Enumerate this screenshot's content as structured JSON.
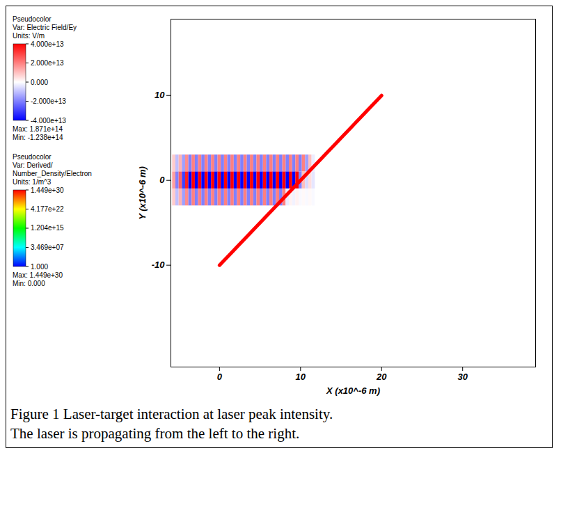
{
  "chart_data": {
    "type": "field_map",
    "xlabel": "X (x10^-6 m)",
    "ylabel": "Y (x10^-6 m)",
    "xlim": [
      -6,
      39
    ],
    "ylim": [
      -22,
      19
    ],
    "xticks": [
      0,
      10,
      20,
      30
    ],
    "yticks": [
      -10,
      0,
      10
    ],
    "ey_field": {
      "x": [
        -5.6,
        -5.2,
        -4.8,
        -4.4,
        -4.0,
        -3.6,
        -3.2,
        -2.8,
        -2.4,
        -2.0,
        -1.6,
        -1.2,
        -0.8,
        -0.4,
        0,
        0.4,
        0.8,
        1.2,
        1.6,
        2.0,
        2.4,
        2.8,
        3.2,
        3.6,
        4.0,
        4.4,
        4.8,
        5.2,
        5.6,
        6.0,
        6.4,
        6.8,
        7.2,
        7.6,
        8.0,
        8.4,
        8.8,
        9.2,
        9.6,
        10.0,
        10.4,
        10.8,
        11.2,
        11.6
      ],
      "y": [
        2,
        0,
        -2
      ],
      "cell_width": 0.4,
      "cell_height": 2,
      "values": [
        [
          8000000000000.0,
          -10000000000000.0,
          12000000000000.0,
          -15000000000000.0,
          18000000000000.0,
          -20000000000000.0,
          20000000000000.0,
          -20000000000000.0,
          20000000000000.0,
          -20000000000000.0,
          20000000000000.0,
          -20000000000000.0,
          20000000000000.0,
          -20000000000000.0,
          20000000000000.0,
          -20000000000000.0,
          20000000000000.0,
          -20000000000000.0,
          20000000000000.0,
          -20000000000000.0,
          20000000000000.0,
          -20000000000000.0,
          20000000000000.0,
          -20000000000000.0,
          20000000000000.0,
          -20000000000000.0,
          20000000000000.0,
          -20000000000000.0,
          20000000000000.0,
          -20000000000000.0,
          20000000000000.0,
          -20000000000000.0,
          20000000000000.0,
          -20000000000000.0,
          20000000000000.0,
          -20000000000000.0,
          20000000000000.0,
          -20000000000000.0,
          20000000000000.0,
          -20000000000000.0,
          20000000000000.0,
          -15000000000000.0,
          10000000000000.0,
          -3000000000000.0
        ],
        [
          15000000000000.0,
          -20000000000000.0,
          25000000000000.0,
          -30000000000000.0,
          35000000000000.0,
          -40000000000000.0,
          40000000000000.0,
          -40000000000000.0,
          40000000000000.0,
          -40000000000000.0,
          40000000000000.0,
          -40000000000000.0,
          40000000000000.0,
          -40000000000000.0,
          40000000000000.0,
          -40000000000000.0,
          40000000000000.0,
          -40000000000000.0,
          40000000000000.0,
          -40000000000000.0,
          40000000000000.0,
          -40000000000000.0,
          40000000000000.0,
          -40000000000000.0,
          40000000000000.0,
          -40000000000000.0,
          40000000000000.0,
          -40000000000000.0,
          40000000000000.0,
          -40000000000000.0,
          40000000000000.0,
          -40000000000000.0,
          40000000000000.0,
          -40000000000000.0,
          40000000000000.0,
          -40000000000000.0,
          40000000000000.0,
          -40000000000000.0,
          40000000000000.0,
          -20000000000000.0,
          10000000000000.0,
          -6000000000000.0,
          5000000000000.0,
          -4000000000000.0
        ],
        [
          8000000000000.0,
          -10000000000000.0,
          12000000000000.0,
          -15000000000000.0,
          18000000000000.0,
          -20000000000000.0,
          20000000000000.0,
          -20000000000000.0,
          20000000000000.0,
          -20000000000000.0,
          20000000000000.0,
          -20000000000000.0,
          20000000000000.0,
          -20000000000000.0,
          20000000000000.0,
          -20000000000000.0,
          20000000000000.0,
          -20000000000000.0,
          20000000000000.0,
          -20000000000000.0,
          20000000000000.0,
          -20000000000000.0,
          20000000000000.0,
          -20000000000000.0,
          20000000000000.0,
          -20000000000000.0,
          20000000000000.0,
          -20000000000000.0,
          20000000000000.0,
          -20000000000000.0,
          20000000000000.0,
          -20000000000000.0,
          20000000000000.0,
          -20000000000000.0,
          20000000000000.0,
          -3000000000000.0,
          2000000000000.0,
          -2000000000000.0,
          2000000000000.0,
          -1000000000000.0,
          1000000000000.0,
          -1000000000000.0,
          1000000000000.0,
          -1000000000000.0
        ]
      ]
    },
    "target": {
      "x": [
        0,
        20
      ],
      "y": [
        -10,
        10
      ],
      "density": 1.449e+30
    },
    "colorbars": [
      {
        "lines": [
          "Pseudocolor",
          "Var: Electric Field/Ey",
          "Units: V/m"
        ],
        "range": [
          -40000000000000.0,
          40000000000000.0
        ],
        "colors": [
          "#0000ff",
          "#ffffff",
          "#ff0000"
        ],
        "ticks": [
          {
            "value": 40000000000000.0,
            "label": "4.000e+13"
          },
          {
            "value": 20000000000000.0,
            "label": "2.000e+13"
          },
          {
            "value": 0,
            "label": "0.000"
          },
          {
            "value": -20000000000000.0,
            "label": "-2.000e+13"
          },
          {
            "value": -40000000000000.0,
            "label": "-4.000e+13"
          }
        ],
        "notes": [
          "Max: 1.871e+14",
          "Min: -1.238e+14"
        ]
      },
      {
        "lines": [
          "Pseudocolor",
          "Var: Derived/Number_Density/Electron",
          "Units: 1/m^3"
        ],
        "log": true,
        "range": [
          1,
          1.449e+30
        ],
        "colors": [
          "#0000ff",
          "#00ffff",
          "#00ff00",
          "#ffff00",
          "#ff0000"
        ],
        "ticks": [
          {
            "value": 1.449e+30,
            "label": "1.449e+30"
          },
          {
            "value": 4.177e+22,
            "label": "4.177e+22"
          },
          {
            "value": 1204000000000000.0,
            "label": "1.204e+15"
          },
          {
            "value": 34690000.0,
            "label": "3.469e+07"
          },
          {
            "value": 1,
            "label": "1.000"
          }
        ],
        "notes": [
          "Max: 1.449e+30",
          "Min: 0.000"
        ]
      }
    ],
    "caption": [
      "Figure 1 Laser-target interaction at laser peak intensity.",
      "The laser is propagating from the left to the right."
    ]
  }
}
